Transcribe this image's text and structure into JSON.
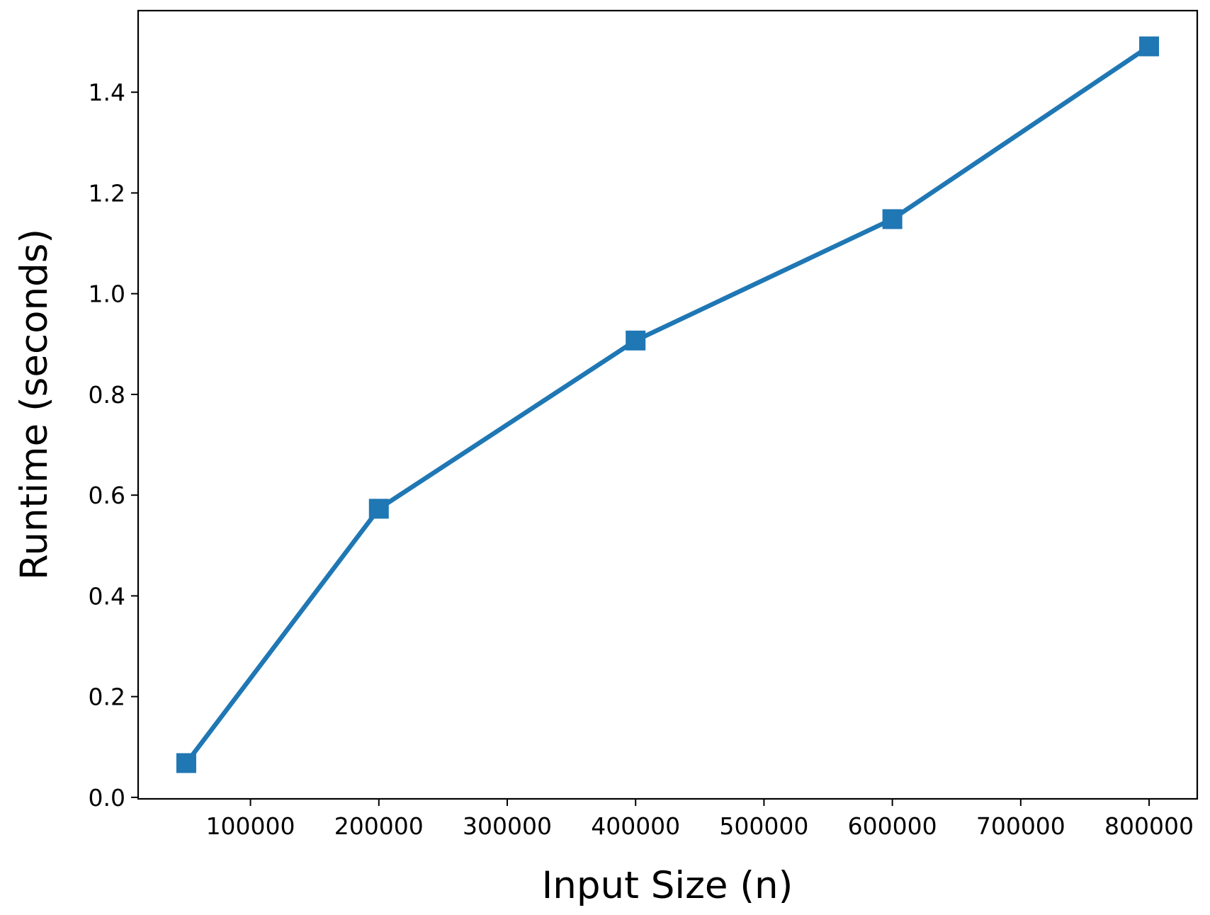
{
  "chart_data": {
    "type": "line",
    "title": "",
    "xlabel": "Input Size (n)",
    "ylabel": "Runtime (seconds)",
    "xlim": [
      12500,
      837500
    ],
    "ylim": [
      -0.003,
      1.562
    ],
    "xticks": [
      100000,
      200000,
      300000,
      400000,
      500000,
      600000,
      700000,
      800000
    ],
    "xtick_labels": [
      "100000",
      "200000",
      "300000",
      "400000",
      "500000",
      "600000",
      "700000",
      "800000"
    ],
    "yticks": [
      0.0,
      0.2,
      0.4,
      0.6,
      0.8,
      1.0,
      1.2,
      1.4
    ],
    "ytick_labels": [
      "0.0",
      "0.2",
      "0.4",
      "0.6",
      "0.8",
      "1.0",
      "1.2",
      "1.4"
    ],
    "grid": false,
    "series": [
      {
        "x": [
          50000,
          200000,
          400000,
          600000,
          800000
        ],
        "y": [
          0.068,
          0.573,
          0.907,
          1.148,
          1.491
        ],
        "color": "#1f77b4",
        "marker": "square"
      }
    ]
  }
}
